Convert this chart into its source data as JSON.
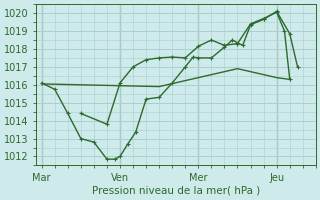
{
  "background_color": "#ceeaea",
  "grid_color": "#aacfcf",
  "line_color": "#2d6a2d",
  "xlabel": "Pression niveau de la mer( hPa )",
  "ylim": [
    1011.5,
    1020.5
  ],
  "yticks": [
    1012,
    1013,
    1014,
    1015,
    1016,
    1017,
    1018,
    1019,
    1020
  ],
  "xtick_labels": [
    "Mar",
    "Ven",
    "Mer",
    "Jeu"
  ],
  "xtick_positions": [
    0,
    3,
    6,
    9
  ],
  "xmin": -0.2,
  "xmax": 10.5,
  "smooth_x": [
    0,
    1.5,
    3.0,
    4.5,
    6.0,
    7.5,
    9.0,
    9.5
  ],
  "smooth_y": [
    1016.05,
    1016.0,
    1015.95,
    1015.9,
    1016.4,
    1016.9,
    1016.4,
    1016.3
  ],
  "jagged_x": [
    0,
    0.5,
    1.0,
    1.5,
    2.0,
    2.5,
    2.8,
    3.0,
    3.3,
    3.6,
    4.0,
    4.5,
    5.0,
    5.5,
    5.8,
    6.0,
    6.5,
    7.0,
    7.3,
    7.7,
    8.0,
    8.5,
    9.0,
    9.5,
    9.8
  ],
  "jagged_y": [
    1016.1,
    1015.75,
    1014.4,
    1013.0,
    1012.8,
    1011.85,
    1011.85,
    1012.0,
    1012.7,
    1013.35,
    1015.2,
    1015.3,
    1016.1,
    1017.0,
    1017.55,
    1017.5,
    1017.5,
    1018.1,
    1018.5,
    1018.2,
    1019.35,
    1019.65,
    1020.1,
    1018.85,
    1017.0
  ],
  "upper_x": [
    1.5,
    2.5,
    3.0,
    3.5,
    4.0,
    4.5,
    5.0,
    5.5,
    6.0,
    6.5,
    7.0,
    7.5,
    8.0,
    8.5,
    9.0,
    9.3,
    9.5
  ],
  "upper_y": [
    1014.4,
    1013.8,
    1016.1,
    1017.0,
    1017.4,
    1017.5,
    1017.55,
    1017.5,
    1018.15,
    1018.5,
    1018.2,
    1018.3,
    1019.4,
    1019.7,
    1020.05,
    1019.0,
    1016.3
  ]
}
